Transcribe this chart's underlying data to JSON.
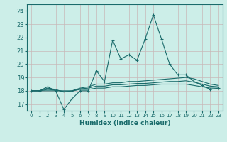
{
  "x": [
    0,
    1,
    2,
    3,
    4,
    5,
    6,
    7,
    8,
    9,
    10,
    11,
    12,
    13,
    14,
    15,
    16,
    17,
    18,
    19,
    20,
    21,
    22,
    23
  ],
  "line1": [
    18.0,
    18.0,
    18.3,
    18.0,
    16.6,
    17.4,
    18.0,
    18.0,
    19.5,
    18.7,
    21.8,
    20.4,
    20.7,
    20.3,
    21.9,
    23.7,
    21.9,
    20.0,
    19.2,
    19.2,
    18.7,
    18.4,
    18.1,
    18.2
  ],
  "line2": [
    18.0,
    18.0,
    18.2,
    18.1,
    17.9,
    18.0,
    18.2,
    18.3,
    18.5,
    18.5,
    18.6,
    18.6,
    18.7,
    18.7,
    18.75,
    18.8,
    18.85,
    18.9,
    18.95,
    19.0,
    18.9,
    18.7,
    18.5,
    18.4
  ],
  "line3": [
    18.0,
    18.0,
    18.0,
    18.0,
    18.0,
    18.0,
    18.1,
    18.1,
    18.2,
    18.2,
    18.3,
    18.3,
    18.35,
    18.4,
    18.4,
    18.45,
    18.5,
    18.5,
    18.5,
    18.5,
    18.4,
    18.3,
    18.2,
    18.2
  ],
  "line4": [
    18.0,
    18.0,
    18.1,
    18.05,
    17.95,
    17.95,
    18.15,
    18.2,
    18.35,
    18.35,
    18.45,
    18.45,
    18.5,
    18.55,
    18.55,
    18.6,
    18.65,
    18.7,
    18.7,
    18.75,
    18.65,
    18.5,
    18.35,
    18.3
  ],
  "bg_color": "#cceee8",
  "line_color": "#1a6b6b",
  "grid_color": "#c8b8b8",
  "xlabel": "Humidex (Indice chaleur)",
  "xlim": [
    -0.5,
    23.5
  ],
  "ylim": [
    16.5,
    24.5
  ],
  "yticks": [
    17,
    18,
    19,
    20,
    21,
    22,
    23,
    24
  ],
  "xticks": [
    0,
    1,
    2,
    3,
    4,
    5,
    6,
    7,
    8,
    9,
    10,
    11,
    12,
    13,
    14,
    15,
    16,
    17,
    18,
    19,
    20,
    21,
    22,
    23
  ]
}
